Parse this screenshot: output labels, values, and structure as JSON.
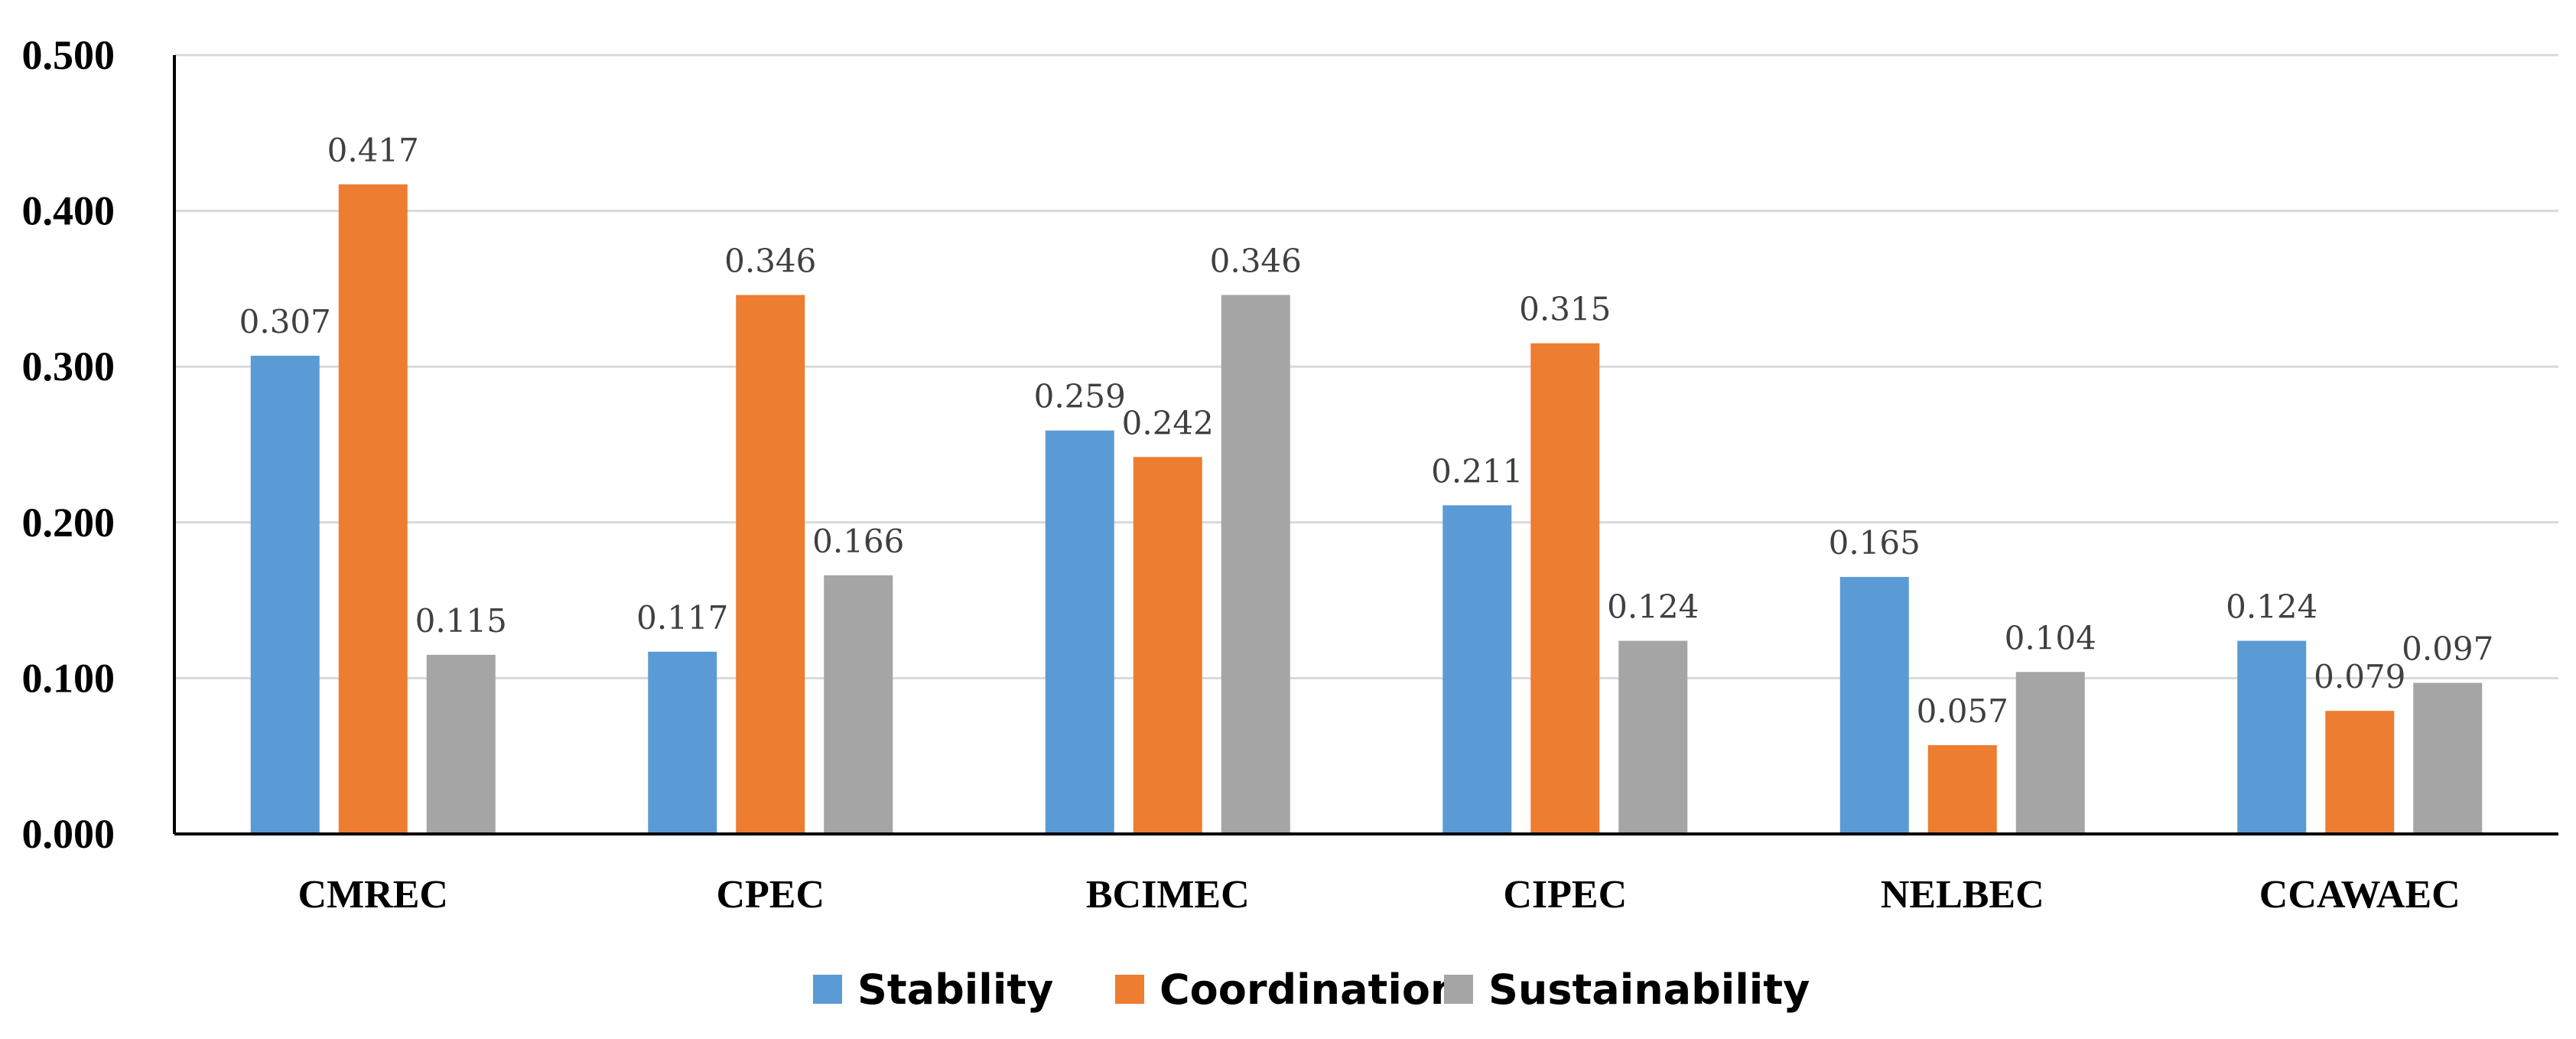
{
  "chart_data": {
    "type": "bar",
    "title": "",
    "xlabel": "",
    "ylabel": "",
    "ylim": [
      0,
      0.5
    ],
    "yticks": [
      "0.000",
      "0.100",
      "0.200",
      "0.300",
      "0.400",
      "0.500"
    ],
    "categories": [
      "CMREC",
      "CPEC",
      "BCIMEC",
      "CIPEC",
      "NELBEC",
      "CCAWAEC"
    ],
    "series": [
      {
        "name": "Stability",
        "color": "#5b9bd5",
        "values": [
          0.307,
          0.117,
          0.259,
          0.211,
          0.165,
          0.124
        ],
        "labels": [
          "0.307",
          "0.117",
          "0.259",
          "0.211",
          "0.165",
          "0.124"
        ]
      },
      {
        "name": "Coordination",
        "color": "#ed7d31",
        "values": [
          0.417,
          0.346,
          0.242,
          0.315,
          0.057,
          0.079
        ],
        "labels": [
          "0.417",
          "0.346",
          "0.242",
          "0.315",
          "0.057",
          "0.079"
        ]
      },
      {
        "name": "Sustainability",
        "color": "#a5a5a5",
        "values": [
          0.115,
          0.166,
          0.346,
          0.124,
          0.104,
          0.097
        ],
        "labels": [
          "0.115",
          "0.166",
          "0.346",
          "0.124",
          "0.104",
          "0.097"
        ]
      }
    ],
    "grid": true,
    "legend_position": "bottom-center"
  }
}
